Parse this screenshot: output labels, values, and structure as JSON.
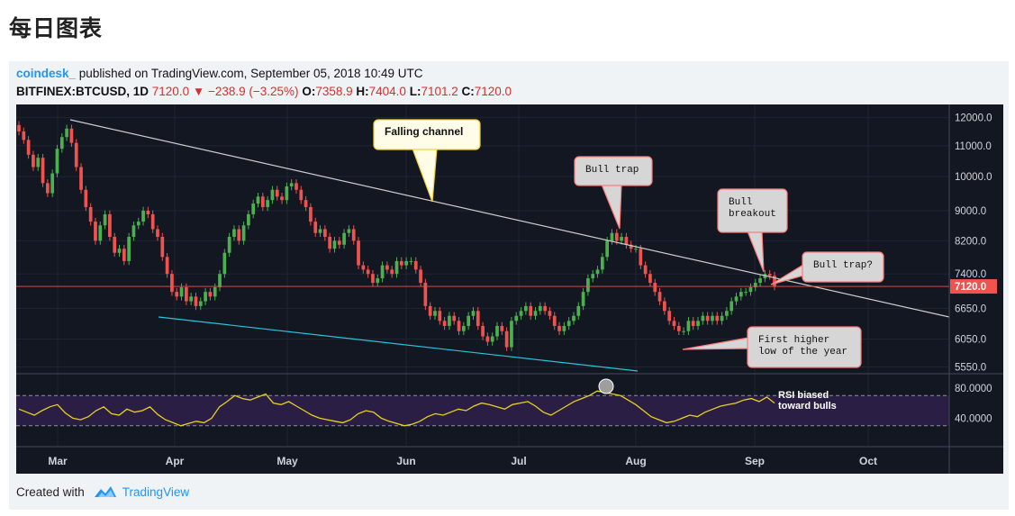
{
  "page_heading": "每日图表",
  "header": {
    "author": "coindesk_",
    "published": "published on TradingView.com, September 05, 2018 10:49 UTC",
    "symbol": "BITFINEX:BTCUSD, 1D",
    "last": "7120.0",
    "change": "−238.9 (−3.25%)",
    "o_label": "O:",
    "o": "7358.9",
    "h_label": "H:",
    "h": "7404.0",
    "l_label": "L:",
    "l": "7101.2",
    "c_label": "C:",
    "c": "7120.0"
  },
  "footer": {
    "created_with": "Created with",
    "brand": "TradingView"
  },
  "colors": {
    "bg": "#131722",
    "up": "#4caf50",
    "down": "#ef5350",
    "rsi": "#e8d120",
    "channel_top": "#cccccc",
    "channel_bottom": "#26c6da",
    "price_line": "#ef5350"
  },
  "chart_data": {
    "type": "candlestick",
    "interval": "1D",
    "price_axis": {
      "ticks": [
        "12000.0",
        "11000.0",
        "10000.0",
        "9000.0",
        "8200.0",
        "7400.0",
        "6650.0",
        "6050.0",
        "5550.0"
      ],
      "scale": "log"
    },
    "current_price_label": "7120.0",
    "x_axis": {
      "ticks": [
        "Mar",
        "Apr",
        "May",
        "Jun",
        "Jul",
        "Aug",
        "Sep",
        "Oct"
      ]
    },
    "closes": [
      11500,
      11200,
      10700,
      10300,
      10600,
      9800,
      9500,
      10100,
      10900,
      11300,
      11600,
      11100,
      10300,
      9600,
      9100,
      8700,
      8200,
      8600,
      8900,
      8300,
      7900,
      8000,
      7700,
      8300,
      8600,
      8700,
      9000,
      8900,
      8500,
      8300,
      7800,
      7400,
      7000,
      6900,
      7100,
      6800,
      6900,
      6700,
      6800,
      7000,
      6900,
      7100,
      7400,
      7900,
      8300,
      8500,
      8200,
      8600,
      8900,
      9200,
      9400,
      9100,
      9300,
      9600,
      9400,
      9300,
      9700,
      9800,
      9600,
      9300,
      9100,
      8700,
      8400,
      8500,
      8300,
      8000,
      8200,
      8100,
      8400,
      8500,
      8200,
      7600,
      7500,
      7400,
      7200,
      7300,
      7600,
      7500,
      7400,
      7700,
      7600,
      7700,
      7700,
      7500,
      7200,
      6700,
      6500,
      6600,
      6400,
      6300,
      6500,
      6400,
      6200,
      6300,
      6500,
      6600,
      6300,
      6100,
      6000,
      6100,
      6300,
      6200,
      5900,
      6400,
      6500,
      6600,
      6700,
      6500,
      6600,
      6700,
      6600,
      6500,
      6300,
      6200,
      6300,
      6400,
      6500,
      6700,
      7000,
      7300,
      7400,
      7500,
      7800,
      8200,
      8400,
      8200,
      8300,
      8100,
      8000,
      8000,
      7600,
      7400,
      7200,
      7000,
      6800,
      6600,
      6400,
      6300,
      6200,
      6200,
      6400,
      6300,
      6400,
      6500,
      6400,
      6500,
      6400,
      6500,
      6600,
      6800,
      6900,
      7000,
      7000,
      7100,
      7200,
      7300,
      7400,
      7358.9,
      7120.0
    ],
    "annotations": [
      "Falling channel",
      "Bull trap",
      "Bull\nbreakout",
      "Bull trap?",
      "First higher\nlow of the year",
      "RSI biased\ntoward bulls"
    ],
    "rsi": {
      "ticks": [
        "80.0000",
        "40.0000"
      ],
      "levels": [
        70,
        30
      ],
      "values": [
        52,
        48,
        44,
        50,
        55,
        58,
        47,
        40,
        38,
        42,
        50,
        55,
        46,
        44,
        52,
        48,
        50,
        55,
        45,
        38,
        34,
        30,
        33,
        36,
        34,
        40,
        55,
        62,
        70,
        66,
        64,
        68,
        72,
        60,
        58,
        62,
        56,
        50,
        44,
        40,
        38,
        36,
        34,
        38,
        46,
        50,
        48,
        40,
        36,
        33,
        30,
        32,
        36,
        42,
        46,
        44,
        48,
        52,
        50,
        56,
        60,
        58,
        55,
        52,
        58,
        60,
        62,
        56,
        48,
        44,
        50,
        56,
        62,
        66,
        70,
        76,
        74,
        72,
        70,
        64,
        58,
        50,
        42,
        38,
        34,
        36,
        40,
        44,
        42,
        48,
        52,
        56,
        58,
        60,
        64,
        66,
        62,
        68,
        60
      ]
    }
  }
}
